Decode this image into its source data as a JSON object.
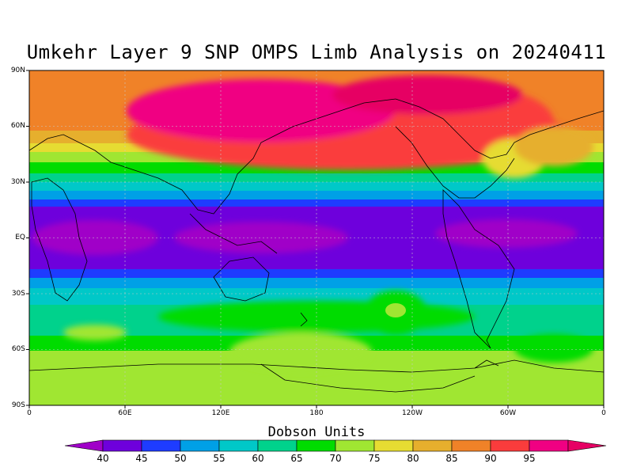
{
  "title": "Umkehr Layer 9 SNP OMPS Limb Analysis on 20240411",
  "lat_ticks": [
    "90N",
    "60N",
    "30N",
    "EQ",
    "30S",
    "60S",
    "90S"
  ],
  "lon_ticks": [
    "0",
    "60E",
    "120E",
    "180",
    "120W",
    "60W",
    "0"
  ],
  "colorbar": {
    "title": "Dobson Units",
    "labels": [
      "40",
      "45",
      "50",
      "55",
      "60",
      "65",
      "70",
      "75",
      "80",
      "85",
      "90",
      "95"
    ],
    "colors": [
      "#a000c8",
      "#6e00dc",
      "#1e3cff",
      "#00a0e6",
      "#00c8c8",
      "#00d28c",
      "#00dc00",
      "#a0e632",
      "#e6dc32",
      "#e6af2d",
      "#f08228",
      "#fa3c3c",
      "#f00082",
      "#e60064"
    ]
  }
}
